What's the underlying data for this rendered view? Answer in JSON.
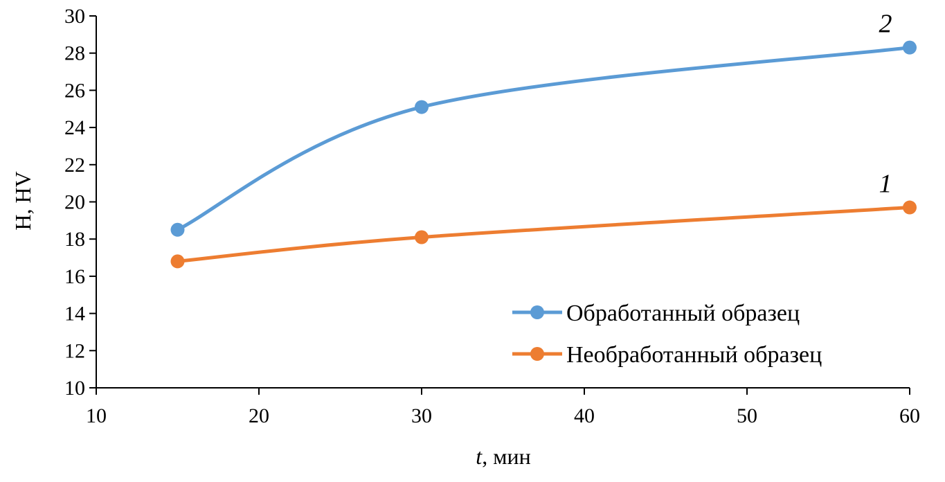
{
  "chart_data": {
    "type": "line",
    "title": "",
    "xlabel_var": "t",
    "xlabel_unit": ", мин",
    "ylabel": "H, HV",
    "xlim": [
      10,
      60
    ],
    "ylim": [
      10,
      30
    ],
    "xticks": [
      10,
      20,
      30,
      40,
      50,
      60
    ],
    "yticks": [
      10,
      12,
      14,
      16,
      18,
      20,
      22,
      24,
      26,
      28,
      30
    ],
    "grid": false,
    "smooth": true,
    "legend_position": "bottom-right",
    "series": [
      {
        "name": "Обработанный образец",
        "curve_label": "2",
        "color": "#5B9BD5",
        "x": [
          15,
          30,
          60
        ],
        "y": [
          18.5,
          25.1,
          28.3
        ]
      },
      {
        "name": "Необработанный образец",
        "curve_label": "1",
        "color": "#ED7D31",
        "x": [
          15,
          30,
          60
        ],
        "y": [
          16.8,
          18.1,
          19.7
        ]
      }
    ]
  }
}
